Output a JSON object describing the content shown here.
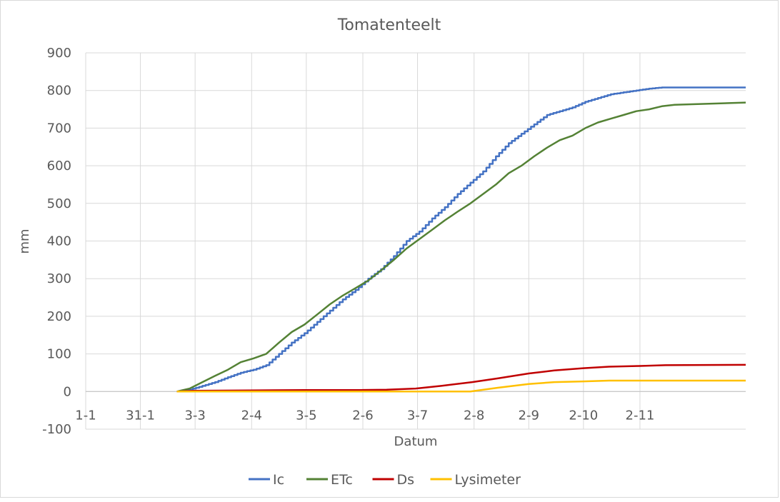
{
  "chart_data": {
    "type": "line",
    "title": "Tomatenteelt",
    "xlabel": "Datum",
    "ylabel": "mm",
    "ylim": [
      -100,
      900
    ],
    "yticks": [
      -100,
      0,
      100,
      200,
      300,
      400,
      500,
      600,
      700,
      800,
      900
    ],
    "xlim": [
      "1-1",
      "29-12"
    ],
    "xticks": [
      {
        "date": "1-1",
        "label": "1-1"
      },
      {
        "date": "31-1",
        "label": "31-1"
      },
      {
        "date": "2-3",
        "label": "3-3"
      },
      {
        "date": "2-4",
        "label": "2-4"
      },
      {
        "date": "2-5",
        "label": "3-5"
      },
      {
        "date": "2-6",
        "label": "2-6"
      },
      {
        "date": "2-7",
        "label": "3-7"
      },
      {
        "date": "2-8",
        "label": "2-8"
      },
      {
        "date": "1-9",
        "label": "2-9"
      },
      {
        "date": "1-10",
        "label": "2-10"
      },
      {
        "date": "1-11",
        "label": "2-11"
      }
    ],
    "grid": true,
    "legend": "bottom",
    "series": [
      {
        "name": "Ic",
        "color": "#4472c4",
        "step": true,
        "x": [
          "20-2",
          "27-2",
          "6-3",
          "13-3",
          "20-3",
          "27-3",
          "3-4",
          "10-4",
          "17-4",
          "24-4",
          "1-5",
          "8-5",
          "15-5",
          "22-5",
          "29-5",
          "5-6",
          "12-6",
          "19-6",
          "26-6",
          "3-7",
          "10-7",
          "17-7",
          "24-7",
          "31-7",
          "7-8",
          "14-8",
          "21-8",
          "28-8",
          "4-9",
          "11-9",
          "18-9",
          "25-9",
          "2-10",
          "9-10",
          "16-10",
          "23-10",
          "30-10",
          "6-11",
          "13-11",
          "20-11",
          "29-12"
        ],
        "y": [
          0,
          5,
          15,
          25,
          38,
          50,
          58,
          70,
          100,
          130,
          155,
          185,
          215,
          245,
          270,
          300,
          325,
          360,
          400,
          425,
          460,
          490,
          525,
          555,
          585,
          625,
          660,
          685,
          710,
          735,
          745,
          755,
          770,
          780,
          790,
          795,
          800,
          805,
          808,
          808,
          808
        ]
      },
      {
        "name": "ETc",
        "color": "#548235",
        "x": [
          "20-2",
          "27-2",
          "6-3",
          "13-3",
          "20-3",
          "27-3",
          "3-4",
          "10-4",
          "17-4",
          "24-4",
          "1-5",
          "8-5",
          "15-5",
          "22-5",
          "29-5",
          "5-6",
          "12-6",
          "19-6",
          "26-6",
          "3-7",
          "10-7",
          "17-7",
          "24-7",
          "31-7",
          "7-8",
          "14-8",
          "21-8",
          "28-8",
          "4-9",
          "11-9",
          "18-9",
          "25-9",
          "2-10",
          "9-10",
          "16-10",
          "23-10",
          "30-10",
          "6-11",
          "13-11",
          "20-11",
          "29-12"
        ],
        "y": [
          0,
          8,
          25,
          42,
          58,
          78,
          88,
          100,
          130,
          158,
          178,
          205,
          232,
          255,
          275,
          295,
          322,
          350,
          380,
          405,
          430,
          455,
          478,
          500,
          525,
          550,
          580,
          600,
          625,
          648,
          668,
          680,
          700,
          715,
          725,
          735,
          745,
          750,
          758,
          762,
          768
        ]
      },
      {
        "name": "Ds",
        "color": "#c00000",
        "x": [
          "20-2",
          "1-3",
          "1-4",
          "1-5",
          "1-6",
          "15-6",
          "1-7",
          "15-7",
          "1-8",
          "15-8",
          "1-9",
          "15-9",
          "1-10",
          "15-10",
          "1-11",
          "15-11",
          "29-12"
        ],
        "y": [
          0,
          2,
          3,
          4,
          4,
          5,
          8,
          15,
          25,
          35,
          48,
          56,
          62,
          66,
          68,
          70,
          71
        ]
      },
      {
        "name": "Lysimeter",
        "color": "#ffc000",
        "x": [
          "20-2",
          "1-3",
          "1-4",
          "1-5",
          "1-6",
          "1-7",
          "31-7",
          "15-8",
          "1-9",
          "15-9",
          "1-10",
          "15-10",
          "1-11",
          "15-11",
          "29-12"
        ],
        "y": [
          0,
          0,
          0,
          0,
          0,
          0,
          0,
          10,
          20,
          25,
          27,
          29,
          29,
          29,
          29
        ]
      }
    ]
  }
}
